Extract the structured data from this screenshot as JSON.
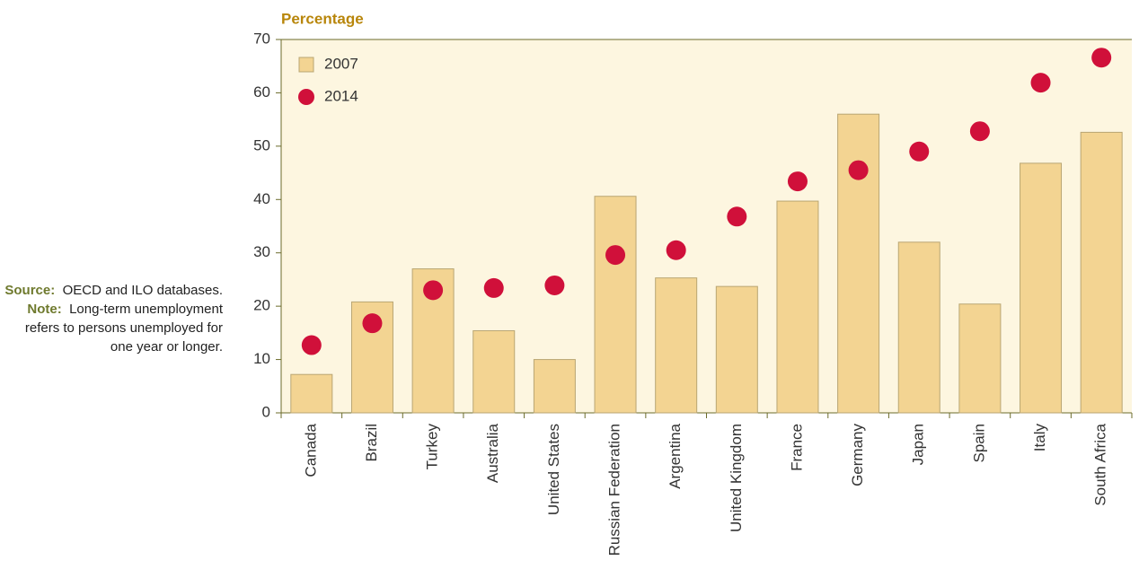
{
  "chart_data": {
    "type": "bar",
    "y_label": "Percentage",
    "categories": [
      "Canada",
      "Brazil",
      "Turkey",
      "Australia",
      "United States",
      "Russian Federation",
      "Argentina",
      "United Kingdom",
      "France",
      "Germany",
      "Japan",
      "Spain",
      "Italy",
      "South Africa"
    ],
    "series": [
      {
        "name": "2007",
        "type": "bar",
        "color": "#f3d492",
        "values": [
          7.2,
          20.8,
          27,
          15.4,
          10,
          40.6,
          25.3,
          23.7,
          39.7,
          56,
          32,
          20.4,
          46.8,
          52.6
        ]
      },
      {
        "name": "2014",
        "type": "scatter",
        "color": "#d0103a",
        "values": [
          12.7,
          16.8,
          23,
          23.4,
          23.9,
          29.6,
          30.5,
          36.8,
          43.4,
          45.5,
          49,
          52.8,
          61.9,
          66.6
        ]
      }
    ],
    "ylim": [
      0,
      70
    ],
    "yticks": [
      0,
      10,
      20,
      30,
      40,
      50,
      60,
      70
    ],
    "legend": "top-left",
    "grid": false
  },
  "notes": {
    "source_label": "Source:",
    "source_text": "OECD and ILO databases.",
    "note_label": "Note:",
    "note_text": "Long-term unemployment refers to persons unemployed for one year or longer."
  }
}
